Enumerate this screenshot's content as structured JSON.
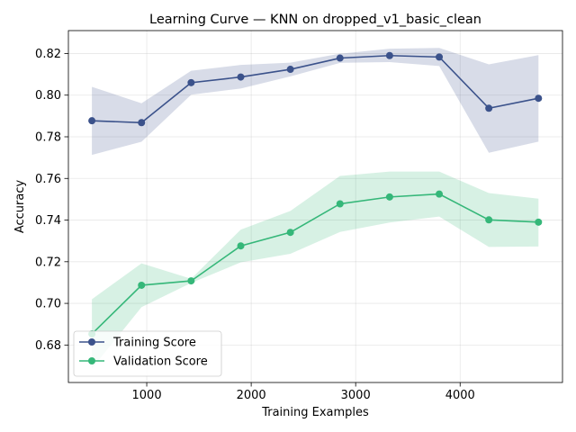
{
  "chart_data": {
    "type": "line",
    "title": "Learning Curve — KNN on dropped_v1_basic_clean",
    "xlabel": "Training Examples",
    "ylabel": "Accuracy",
    "xlim": [
      250,
      4980
    ],
    "ylim": [
      0.662,
      0.831
    ],
    "xticks": [
      1000,
      2000,
      3000,
      4000
    ],
    "yticks": [
      0.68,
      0.7,
      0.72,
      0.74,
      0.76,
      0.78,
      0.8,
      0.82
    ],
    "grid": true,
    "legend_position": "lower-left",
    "x": [
      475,
      950,
      1425,
      1900,
      2375,
      2850,
      3325,
      3800,
      4275,
      4750
    ],
    "series": [
      {
        "name": "Training Score",
        "color": "#3b528b",
        "values": [
          0.7877,
          0.7868,
          0.806,
          0.8087,
          0.8124,
          0.8178,
          0.819,
          0.8183,
          0.7937,
          0.7985
        ],
        "band_low": [
          0.7713,
          0.7776,
          0.8002,
          0.8032,
          0.809,
          0.8155,
          0.8159,
          0.814,
          0.7723,
          0.7777
        ],
        "band_high": [
          0.804,
          0.7961,
          0.8117,
          0.8145,
          0.8156,
          0.8199,
          0.8223,
          0.8227,
          0.8148,
          0.8192
        ]
      },
      {
        "name": "Validation Score",
        "color": "#35b779",
        "values": [
          0.6853,
          0.7087,
          0.7108,
          0.7276,
          0.7341,
          0.7478,
          0.7511,
          0.7525,
          0.7401,
          0.739
        ],
        "band_low": [
          0.6687,
          0.6982,
          0.7098,
          0.7197,
          0.7238,
          0.7343,
          0.7388,
          0.7417,
          0.7271,
          0.7273
        ],
        "band_high": [
          0.702,
          0.7192,
          0.7118,
          0.7354,
          0.7444,
          0.7612,
          0.7633,
          0.7633,
          0.753,
          0.7503
        ]
      }
    ]
  }
}
